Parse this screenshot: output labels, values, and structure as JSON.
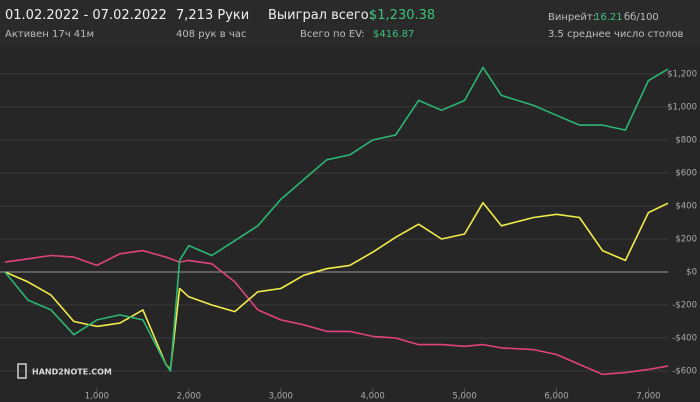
{
  "header": {
    "date_range": "01.02.2022 - 07.02.2022",
    "active": "Активен 17ч 41м",
    "hands": "7,213 Руки",
    "hands_per_hour": "408 рук в час",
    "won_label": "Выиграл всего:",
    "won_value": "$1,230.38",
    "ev_label": "Всего по EV:",
    "ev_value": "$416.87",
    "winrate_label": "Винрейт:",
    "winrate_value": "16.21",
    "winrate_unit": "бб/100",
    "tables": "3.5 среднее число столов"
  },
  "logo": "HAND2NOTE.COM",
  "chart_data": {
    "type": "line",
    "x": [
      0,
      250,
      500,
      750,
      1000,
      1250,
      1500,
      1750,
      1800,
      1900,
      2000,
      2250,
      2500,
      2750,
      3000,
      3250,
      3500,
      3750,
      4000,
      4250,
      4500,
      4750,
      5000,
      5200,
      5400,
      5750,
      6000,
      6250,
      6500,
      6750,
      7000,
      7213
    ],
    "series": [
      {
        "color": "#e0437c",
        "values": [
          60,
          80,
          100,
          90,
          40,
          110,
          130,
          90,
          80,
          60,
          70,
          50,
          -60,
          -230,
          -290,
          -320,
          -360,
          -360,
          -390,
          -400,
          -440,
          -440,
          -450,
          -440,
          -460,
          -470,
          -500,
          -560,
          -620,
          -610,
          -590,
          -570
        ]
      },
      {
        "color": "#f2ec4a",
        "values": [
          0,
          -60,
          -140,
          -300,
          -330,
          -310,
          -230,
          -560,
          -590,
          -100,
          -150,
          -200,
          -240,
          -120,
          -100,
          -20,
          20,
          40,
          120,
          210,
          290,
          200,
          230,
          420,
          280,
          330,
          350,
          330,
          130,
          70,
          360,
          417
        ]
      },
      {
        "color": "#2bb673",
        "values": [
          0,
          -170,
          -230,
          -380,
          -290,
          -260,
          -290,
          -560,
          -600,
          70,
          160,
          100,
          190,
          280,
          440,
          560,
          680,
          710,
          800,
          830,
          1040,
          980,
          1040,
          1240,
          1070,
          1010,
          950,
          890,
          890,
          860,
          1160,
          1230
        ]
      }
    ],
    "xlim": [
      0,
      7213
    ],
    "ylim": [
      -700,
      1300
    ],
    "xticks": [
      {
        "value": 1000,
        "label": "1,000"
      },
      {
        "value": 2000,
        "label": "2,000"
      },
      {
        "value": 3000,
        "label": "3,000"
      },
      {
        "value": 4000,
        "label": "4,000"
      },
      {
        "value": 5000,
        "label": "5,000"
      },
      {
        "value": 6000,
        "label": "6,000"
      },
      {
        "value": 7000,
        "label": "7,000"
      }
    ],
    "yticks": [
      {
        "value": -600,
        "label": "-$600"
      },
      {
        "value": -400,
        "label": "-$400"
      },
      {
        "value": -200,
        "label": "-$200"
      },
      {
        "value": 0,
        "label": "$0"
      },
      {
        "value": 200,
        "label": "$200"
      },
      {
        "value": 400,
        "label": "$400"
      },
      {
        "value": 600,
        "label": "$600"
      },
      {
        "value": 800,
        "label": "$800"
      },
      {
        "value": 1000,
        "label": "$1,000"
      },
      {
        "value": 1200,
        "label": "$1,200"
      }
    ],
    "grid": true
  }
}
